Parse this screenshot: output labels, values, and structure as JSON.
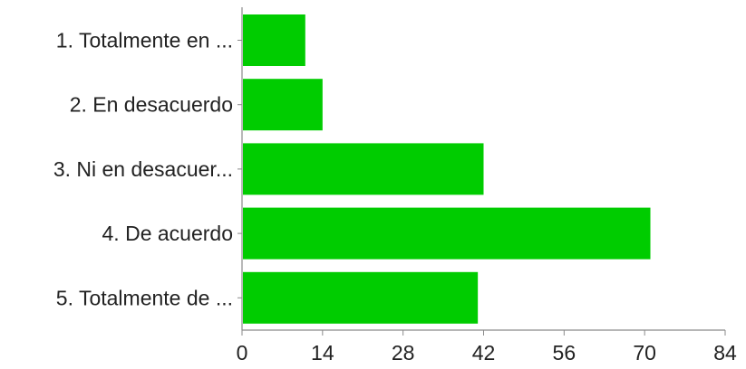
{
  "chart_data": {
    "type": "bar",
    "orientation": "horizontal",
    "categories": [
      "1. Totalmente en ...",
      "2. En desacuerdo",
      "3. Ni en desacuer...",
      "4. De acuerdo",
      "5. Totalmente de ..."
    ],
    "values": [
      11,
      14,
      42,
      71,
      41
    ],
    "xlim": [
      0,
      84
    ],
    "xticks": [
      0,
      14,
      28,
      42,
      56,
      70,
      84
    ],
    "grid": false,
    "title": "",
    "xlabel": "",
    "ylabel": "",
    "colors": {
      "bar": "#00cc00",
      "axis": "#8a8a8a",
      "text": "#222222"
    }
  }
}
